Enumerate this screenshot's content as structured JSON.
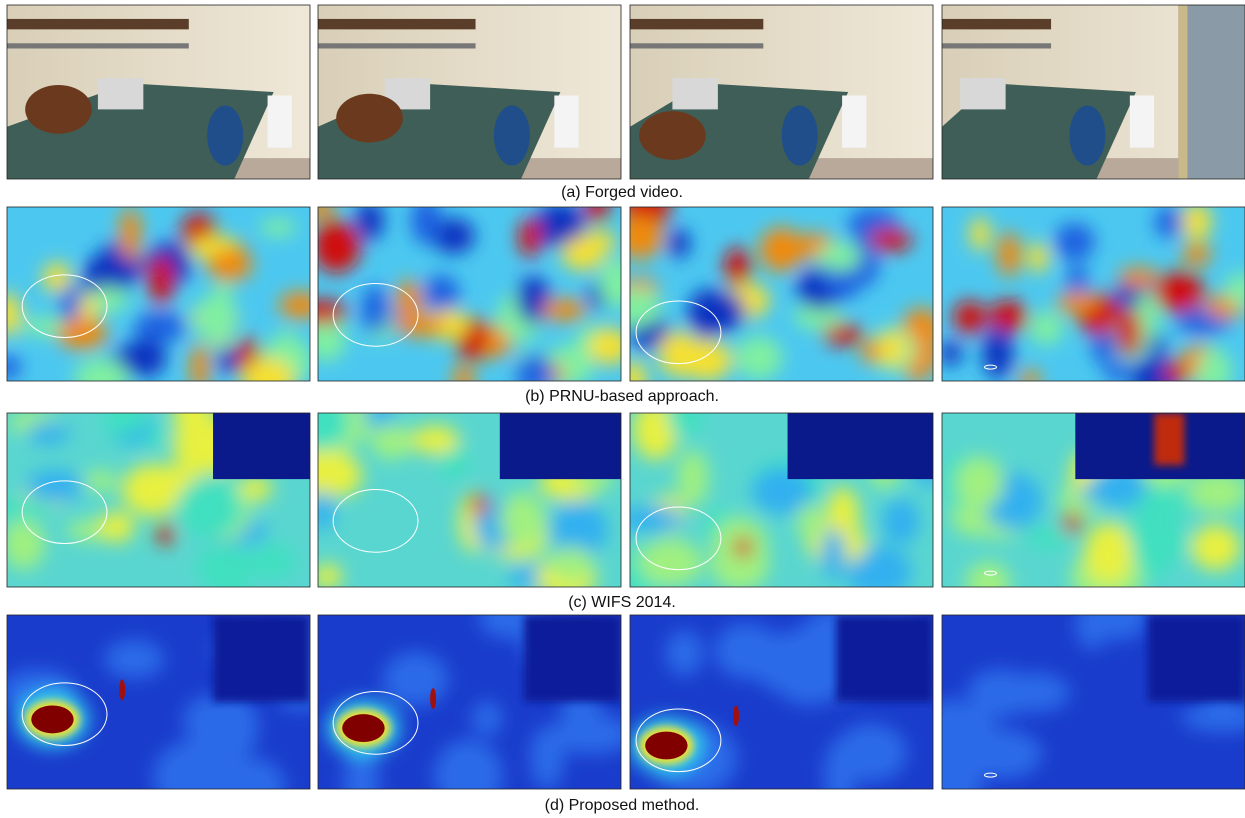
{
  "rows": [
    {
      "caption": "(a) Forged video."
    },
    {
      "caption": "(b) PRNU-based approach."
    },
    {
      "caption": "(c) WIFS 2014."
    },
    {
      "caption": "(d) Proposed method."
    }
  ]
}
